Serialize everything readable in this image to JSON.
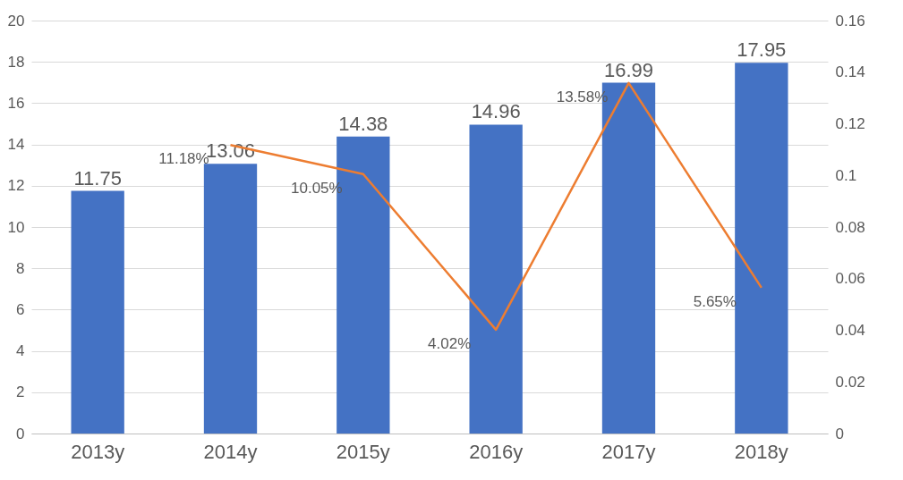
{
  "chart_data": {
    "type": "bar",
    "categories": [
      "2013y",
      "2014y",
      "2015y",
      "2016y",
      "2017y",
      "2018y"
    ],
    "series": [
      {
        "color": "#4472c4",
        "values": [
          11.75,
          13.06,
          14.38,
          14.96,
          16.99,
          17.95
        ],
        "data_labels": true
      },
      {
        "type": "line",
        "axis": "y2",
        "color": "#ed7d31",
        "values": [
          null,
          0.1118,
          0.1005,
          0.0402,
          0.1358,
          0.0565
        ],
        "value_labels": [
          null,
          "11.18%",
          "10.05%",
          "4.02%",
          "13.58%",
          "5.65%"
        ]
      }
    ],
    "ylim": [
      0,
      20
    ],
    "yticks": [
      0,
      2,
      4,
      6,
      8,
      10,
      12,
      14,
      16,
      18,
      20
    ],
    "y2lim": [
      0,
      0.16
    ],
    "y2ticks": [
      0,
      0.02,
      0.04,
      0.06,
      0.08,
      0.1,
      0.12,
      0.14,
      0.16
    ],
    "grid": "y",
    "marker": "none",
    "line_style": "solid"
  }
}
